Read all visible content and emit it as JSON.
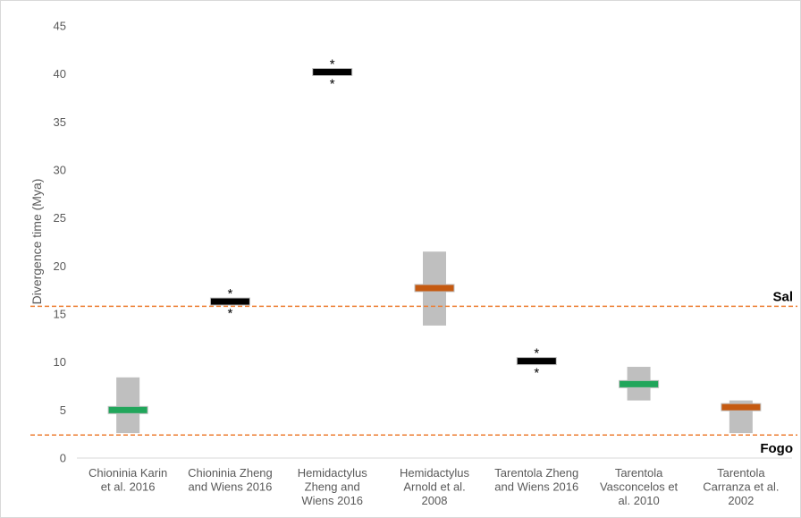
{
  "chart_data": {
    "type": "range",
    "title": "",
    "xlabel": "",
    "ylabel": "Divergence time (Mya)",
    "ylim": [
      0,
      45
    ],
    "yticks": [
      0,
      5,
      10,
      15,
      20,
      25,
      30,
      35,
      40,
      45
    ],
    "grid": false,
    "categories": [
      [
        "Chioninia Karin",
        "et al. 2016"
      ],
      [
        "Chioninia Zheng",
        "and Wiens 2016"
      ],
      [
        "Hemidactylus",
        "Zheng and",
        "Wiens 2016"
      ],
      [
        "Hemidactylus",
        "Arnold et al.",
        "2008"
      ],
      [
        "Tarentola Zheng",
        "and Wiens 2016"
      ],
      [
        "Tarentola",
        "Vasconcelos et",
        "al. 2010"
      ],
      [
        "Tarentola",
        "Carranza et al.",
        "2002"
      ]
    ],
    "estimates": [
      {
        "value": 5.0,
        "low": 2.6,
        "high": 8.4,
        "color": "#21a65b",
        "star": false
      },
      {
        "value": 16.3,
        "low": null,
        "high": null,
        "color": "#000000",
        "star": true
      },
      {
        "value": 40.2,
        "low": null,
        "high": null,
        "color": "#000000",
        "star": true
      },
      {
        "value": 17.7,
        "low": 13.8,
        "high": 21.5,
        "color": "#c55a11",
        "star": false
      },
      {
        "value": 10.1,
        "low": null,
        "high": null,
        "color": "#000000",
        "star": true
      },
      {
        "value": 7.7,
        "low": 6.0,
        "high": 9.5,
        "color": "#21a65b",
        "star": false
      },
      {
        "value": 5.3,
        "low": 2.6,
        "high": 6.0,
        "color": "#c55a11",
        "star": false
      }
    ],
    "reference_lines": [
      {
        "label": "Sal",
        "value": 15.8,
        "color": "#ed7d31"
      },
      {
        "label": "Fogo",
        "value": 2.4,
        "color": "#ed7d31"
      }
    ],
    "star_symbol": "*",
    "colors": {
      "range_bar": "#bfbfbf",
      "axis": "#d9d9d9",
      "text": "#595959"
    }
  }
}
